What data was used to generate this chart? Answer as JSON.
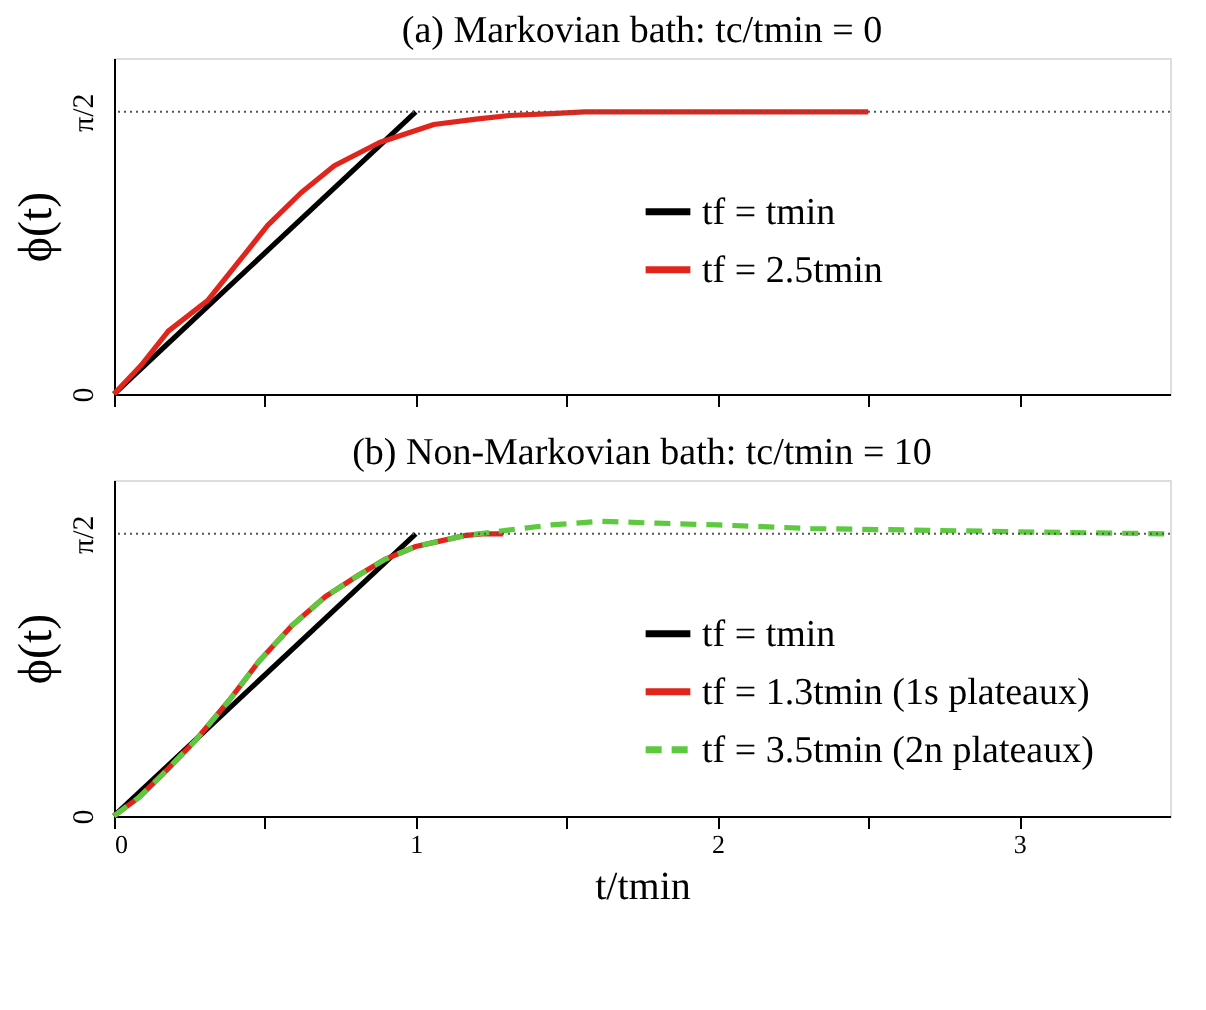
{
  "chart_data": [
    {
      "type": "line",
      "title": "(a) Markovian bath: tc/tmin = 0",
      "ylabel": "ϕ(t)",
      "xlim": [
        0,
        3.5
      ],
      "ylim": [
        0,
        1.87
      ],
      "xticks": [
        0,
        {
          "value": 0.5,
          "label": null
        },
        1,
        {
          "value": 1.5,
          "label": null
        },
        2,
        {
          "value": 2.5,
          "label": null
        },
        3
      ],
      "yticks": [
        0,
        {
          "value": 1.5708,
          "label": "π/2"
        }
      ],
      "tick_labels": "y",
      "grid": false,
      "legend": "right",
      "line_style": "solid",
      "ref_lines": [
        {
          "axis": "y",
          "value": 1.5708,
          "label": null,
          "color": "#555555",
          "line_style": "dotted"
        }
      ],
      "series": [
        {
          "name": "tf = tmin",
          "color": "#000000",
          "x": [
            0,
            1
          ],
          "values": [
            0,
            1.57
          ]
        },
        {
          "name": "tf = 2.5tmin",
          "color": "#e0261c",
          "x": [
            0,
            0.09,
            0.18,
            0.31,
            0.42,
            0.51,
            0.62,
            0.73,
            0.88,
            1.06,
            1.2,
            1.31,
            1.45,
            1.56,
            1.8,
            2.1,
            2.5
          ],
          "values": [
            0,
            0.16,
            0.35,
            0.52,
            0.75,
            0.94,
            1.12,
            1.27,
            1.4,
            1.5,
            1.53,
            1.55,
            1.56,
            1.57,
            1.57,
            1.57,
            1.57
          ]
        }
      ]
    },
    {
      "type": "line",
      "title": "(b) Non-Markovian bath: tc/tmin = 10",
      "xlabel": "t/tmin",
      "ylabel": "ϕ(t)",
      "xlim": [
        0,
        3.5
      ],
      "ylim": [
        0,
        1.87
      ],
      "xticks": [
        0,
        {
          "value": 0.5,
          "label": null
        },
        1,
        {
          "value": 1.5,
          "label": null
        },
        2,
        {
          "value": 2.5,
          "label": null
        },
        3
      ],
      "yticks": [
        0,
        {
          "value": 1.5708,
          "label": "π/2"
        }
      ],
      "grid": false,
      "legend": "right",
      "line_style": "solid",
      "ref_lines": [
        {
          "axis": "y",
          "value": 1.5708,
          "label": null,
          "color": "#555555",
          "line_style": "dotted"
        }
      ],
      "series": [
        {
          "name": "tf = tmin",
          "color": "#000000",
          "x": [
            0,
            1
          ],
          "values": [
            0,
            1.57
          ]
        },
        {
          "name": "tf = 1.3tmin (1s plateaux)",
          "color": "#e0261c",
          "x": [
            0,
            0.08,
            0.16,
            0.27,
            0.38,
            0.48,
            0.59,
            0.7,
            0.81,
            0.9,
            1.0,
            1.08,
            1.16,
            1.22,
            1.29
          ],
          "values": [
            0,
            0.1,
            0.23,
            0.42,
            0.64,
            0.86,
            1.06,
            1.22,
            1.34,
            1.43,
            1.5,
            1.53,
            1.56,
            1.57,
            1.57
          ]
        },
        {
          "name": "tf = 3.5tmin (2n plateaux)",
          "color": "#5cc93f",
          "line_style": "dashed",
          "x": [
            0,
            0.08,
            0.16,
            0.27,
            0.38,
            0.48,
            0.59,
            0.7,
            0.81,
            0.9,
            1.0,
            1.08,
            1.16,
            1.3,
            1.45,
            1.61,
            1.8,
            2.0,
            2.31,
            2.7,
            3.06,
            3.5
          ],
          "values": [
            0,
            0.1,
            0.23,
            0.42,
            0.64,
            0.86,
            1.06,
            1.22,
            1.34,
            1.43,
            1.5,
            1.53,
            1.56,
            1.59,
            1.62,
            1.64,
            1.63,
            1.62,
            1.6,
            1.59,
            1.58,
            1.57
          ]
        }
      ]
    }
  ]
}
